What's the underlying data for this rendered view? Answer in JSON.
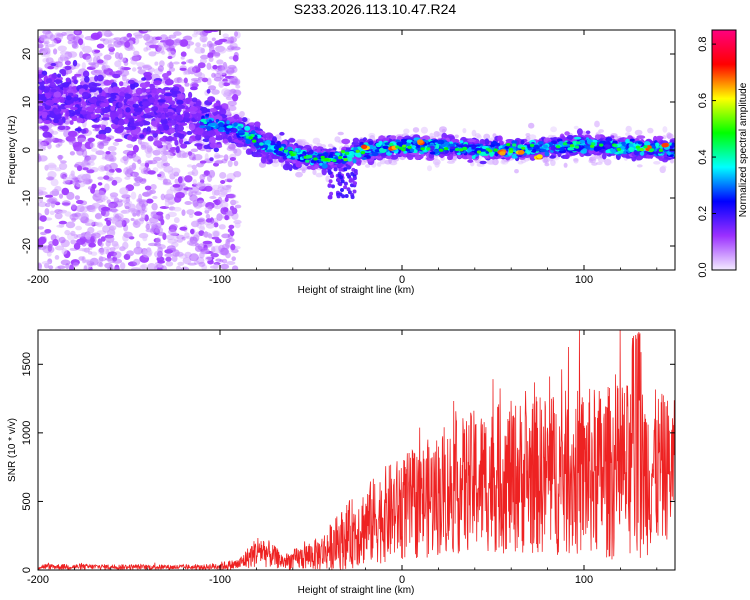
{
  "title": "S233.2026.113.10.47.R24",
  "chart_data": [
    {
      "type": "heatmap",
      "name": "spectrogram",
      "xlabel": "Height of straight line (km)",
      "ylabel": "Frequency (Hz)",
      "xlim": [
        -200,
        150
      ],
      "ylim": [
        -25,
        25
      ],
      "xticks": [
        -200,
        -100,
        0,
        100
      ],
      "xtick_labels": [
        "-200",
        "-100",
        "0",
        "100"
      ],
      "yticks": [
        -20,
        -10,
        0,
        10,
        20
      ],
      "ytick_labels": [
        "-20",
        "-10",
        "0",
        "10",
        "20"
      ],
      "colorbar": {
        "label": "Normalized spectral amplitude",
        "range": [
          0,
          0.85
        ],
        "ticks": [
          0.0,
          0.2,
          0.4,
          0.6,
          0.8
        ],
        "tick_labels": [
          "0.0",
          "0.2",
          "0.4",
          "0.6",
          "0.8"
        ],
        "colors": [
          "#f4ecff",
          "#9b30ff",
          "#0000ff",
          "#00ffff",
          "#00ff00",
          "#ffff00",
          "#ff0000",
          "#ff007f"
        ]
      },
      "band": {
        "center_hz": [
          {
            "x": -200,
            "y": 11
          },
          {
            "x": -160,
            "y": 9
          },
          {
            "x": -120,
            "y": 7
          },
          {
            "x": -90,
            "y": 4
          },
          {
            "x": -75,
            "y": 1
          },
          {
            "x": -60,
            "y": -1
          },
          {
            "x": -40,
            "y": -2
          },
          {
            "x": -20,
            "y": 0
          },
          {
            "x": 0,
            "y": 1
          },
          {
            "x": 50,
            "y": 0
          },
          {
            "x": 100,
            "y": 1
          },
          {
            "x": 150,
            "y": 0
          }
        ],
        "peak_points": [
          {
            "x": -20,
            "y": 0.5
          },
          {
            "x": -5,
            "y": 0.5
          },
          {
            "x": 10,
            "y": 1.5
          },
          {
            "x": 55,
            "y": -0.5
          },
          {
            "x": 65,
            "y": -0.5
          },
          {
            "x": 75,
            "y": -1.5
          },
          {
            "x": 135,
            "y": 0.5
          },
          {
            "x": 145,
            "y": 1
          }
        ]
      }
    },
    {
      "type": "line",
      "name": "snr",
      "xlabel": "Height of straight line (km)",
      "ylabel": "SNR (10 * v/v)",
      "xlim": [
        -200,
        150
      ],
      "ylim": [
        0,
        1750
      ],
      "xticks": [
        -200,
        -100,
        0,
        100
      ],
      "xtick_labels": [
        "-200",
        "-100",
        "0",
        "100"
      ],
      "yticks": [
        0,
        500,
        1000,
        1500
      ],
      "ytick_labels": [
        "0",
        "500",
        "1000",
        "1500"
      ],
      "color": "#ee2222",
      "envelope": [
        {
          "x": -200,
          "base": 25,
          "spread": 30
        },
        {
          "x": -110,
          "base": 20,
          "spread": 25
        },
        {
          "x": -90,
          "base": 40,
          "spread": 60
        },
        {
          "x": -78,
          "base": 150,
          "spread": 180
        },
        {
          "x": -65,
          "base": 60,
          "spread": 80
        },
        {
          "x": -45,
          "base": 120,
          "spread": 180
        },
        {
          "x": -30,
          "base": 250,
          "spread": 350
        },
        {
          "x": -10,
          "base": 400,
          "spread": 500
        },
        {
          "x": 10,
          "base": 500,
          "spread": 600
        },
        {
          "x": 40,
          "base": 650,
          "spread": 750
        },
        {
          "x": 80,
          "base": 700,
          "spread": 850
        },
        {
          "x": 130,
          "base": 720,
          "spread": 950
        },
        {
          "x": 150,
          "base": 750,
          "spread": 700
        }
      ],
      "peak_value": 1750
    }
  ]
}
